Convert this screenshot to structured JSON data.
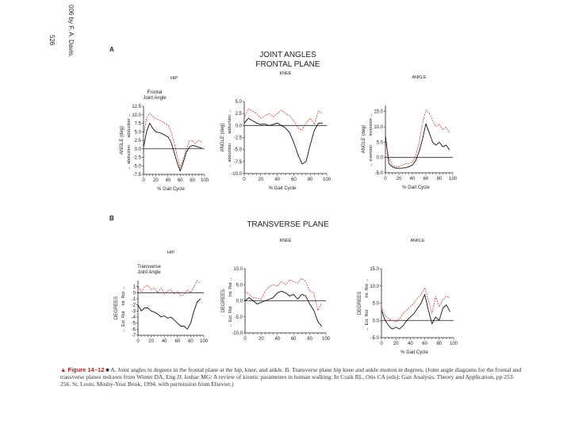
{
  "page_number": "526",
  "side_note": "006 by F. A. Davis.",
  "sections": [
    {
      "label": "A",
      "title_line1": "JOINT ANGLES",
      "title_line2": "FRONTAL PLANE"
    },
    {
      "label": "B",
      "title_line1": "TRANSVERSE PLANE",
      "title_line2": ""
    }
  ],
  "caption": {
    "fig_label": "▲ Figure 14–12",
    "text": "■ A. Joint angles in degrees in the frontal plane at the hip, knee, and ankle. B. Transverse plane hip knee and ankle motion in degrees. (Joint angle diagrams for the frontal and transverse planes redrawn from Winter DA, Eng JJ, Isshac MG: A review of kinetic parameters in human walking. In Craik RL, Otis CA (eds): Gait Analysis: Theory and Application, pp 253-256. St. Louis, Mosby-Year Book, 1994, with permission from Elsevier.)"
  },
  "colors": {
    "series1": "#111111",
    "series2": "#c0392b"
  },
  "chart_data": [
    {
      "type": "line",
      "title": "HIP",
      "inset_label": "Frontal Joint Angle",
      "xlabel": "% Gait Cycle",
      "ylabel": "ANGLE (deg)",
      "dir_top": "adduction",
      "dir_bottom": "abduction",
      "xlim": [
        0,
        100
      ],
      "ylim": [
        -7.5,
        12.5
      ],
      "yticks": [
        "12.5",
        "10.0",
        "7.5",
        "5.0",
        "2.5",
        "0.0",
        "-2.5",
        "-5.0",
        "-7.5"
      ],
      "xticks": [
        "0",
        "20",
        "40",
        "60",
        "80",
        "100"
      ],
      "zero_line": 0,
      "series": [
        {
          "name": "series-1",
          "x": [
            0,
            5,
            10,
            15,
            20,
            25,
            30,
            35,
            40,
            45,
            50,
            55,
            60,
            65,
            70,
            75,
            80,
            85,
            90,
            95
          ],
          "y": [
            0.5,
            5,
            7.5,
            6,
            5,
            4.8,
            4.5,
            4,
            3.5,
            2,
            -1,
            -4,
            -6.5,
            -4,
            -1,
            0.5,
            1,
            0.8,
            0.5,
            0.2
          ]
        },
        {
          "name": "series-2",
          "x": [
            0,
            5,
            10,
            15,
            20,
            25,
            30,
            35,
            40,
            45,
            50,
            55,
            60,
            65,
            70,
            75,
            80,
            85,
            90,
            95
          ],
          "y": [
            4,
            9,
            10.5,
            9.5,
            8.8,
            8.5,
            8,
            7.5,
            7,
            5,
            2,
            -2,
            -5.5,
            -3,
            0,
            2.2,
            2.5,
            1.5,
            2.5,
            2
          ]
        }
      ]
    },
    {
      "type": "line",
      "title": "KNEE",
      "inset_label": "",
      "xlabel": "% Gait Cycle",
      "ylabel": "ANGLE (deg)",
      "dir_top": "adduction",
      "dir_bottom": "abduction",
      "xlim": [
        0,
        100
      ],
      "ylim": [
        -10,
        5
      ],
      "yticks": [
        "5.0",
        "2.5",
        "0.0",
        "-2.5",
        "-5.0",
        "-7.5",
        "-10.0"
      ],
      "xticks": [
        "0",
        "20",
        "40",
        "60",
        "80",
        "100"
      ],
      "zero_line": 0,
      "series": [
        {
          "name": "series-1",
          "x": [
            0,
            5,
            10,
            15,
            20,
            25,
            30,
            35,
            40,
            45,
            50,
            55,
            60,
            65,
            70,
            75,
            80,
            85,
            90,
            95
          ],
          "y": [
            0.5,
            1.5,
            1,
            0.5,
            0.2,
            0.3,
            0,
            0.2,
            0.5,
            0,
            -0.5,
            -1.5,
            -3.5,
            -6,
            -8,
            -7.5,
            -4,
            -1,
            0.5,
            0.5
          ]
        },
        {
          "name": "series-2",
          "x": [
            0,
            5,
            10,
            15,
            20,
            25,
            30,
            35,
            40,
            45,
            50,
            55,
            60,
            65,
            70,
            75,
            80,
            85,
            90,
            95
          ],
          "y": [
            1.5,
            3.5,
            3,
            2.5,
            1.5,
            2,
            2.5,
            1.8,
            2.5,
            3.2,
            2.5,
            2,
            1,
            -0.5,
            -1,
            0.5,
            1.5,
            0.2,
            3,
            2.5
          ]
        }
      ]
    },
    {
      "type": "line",
      "title": "ANKLE",
      "inset_label": "",
      "xlabel": "% Gait Cycle",
      "ylabel": "ANGLE (deg)",
      "dir_top": "inversion",
      "dir_bottom": "eversion",
      "xlim": [
        0,
        100
      ],
      "ylim": [
        -5,
        17
      ],
      "yticks": [
        "15.0",
        "10.0",
        "5.0",
        "0.0",
        "-5.0"
      ],
      "xticks": [
        "0",
        "20",
        "40",
        "60",
        "80",
        "100"
      ],
      "zero_line": 0,
      "series": [
        {
          "name": "series-1",
          "x": [
            0,
            5,
            10,
            15,
            20,
            25,
            30,
            35,
            40,
            45,
            50,
            55,
            60,
            65,
            70,
            75,
            80,
            85,
            90,
            95
          ],
          "y": [
            7,
            -2,
            -3,
            -3.5,
            -3.5,
            -3.5,
            -3.3,
            -3,
            -2.5,
            -1,
            2,
            6,
            11,
            8,
            5,
            4,
            5,
            3.5,
            4,
            2.5
          ]
        },
        {
          "name": "series-2",
          "x": [
            0,
            5,
            10,
            15,
            20,
            25,
            30,
            35,
            40,
            45,
            50,
            55,
            60,
            65,
            70,
            75,
            80,
            85,
            90,
            95
          ],
          "y": [
            5,
            0,
            -2.5,
            -3,
            -3,
            -2.5,
            -2,
            -2,
            -1.5,
            0.5,
            5,
            11,
            15.5,
            14.5,
            12,
            10,
            11,
            9,
            10,
            8
          ]
        }
      ]
    },
    {
      "type": "line",
      "title": "HIP",
      "inset_label": "Transverse Joint Angle",
      "xlabel": "",
      "ylabel": "DEGREES",
      "dir_top": "Int. Rot",
      "dir_bottom": "Ext. Rot",
      "xlim": [
        0,
        100
      ],
      "ylim": [
        -7,
        2
      ],
      "yticks": [
        "1",
        "0",
        "-1",
        "-2",
        "-3",
        "-4",
        "-5",
        "-6",
        "-7"
      ],
      "xticks": [
        "0",
        "20",
        "40",
        "60",
        "80",
        "100"
      ],
      "zero_line": 0,
      "series": [
        {
          "name": "series-1",
          "x": [
            0,
            5,
            10,
            15,
            20,
            25,
            30,
            35,
            40,
            45,
            50,
            55,
            60,
            65,
            70,
            75,
            80,
            85,
            90,
            95
          ],
          "y": [
            -2,
            -3,
            -2.5,
            -2.5,
            -3,
            -3.2,
            -3.5,
            -4,
            -3.8,
            -4.2,
            -4,
            -4.5,
            -5,
            -5.5,
            -5.5,
            -6,
            -5,
            -3,
            -1.5,
            -1
          ]
        },
        {
          "name": "series-2",
          "x": [
            0,
            5,
            10,
            15,
            20,
            25,
            30,
            35,
            40,
            45,
            50,
            55,
            60,
            65,
            70,
            75,
            80,
            85,
            90,
            95
          ],
          "y": [
            1,
            0.2,
            1,
            1.2,
            0.5,
            0.8,
            0,
            0.8,
            -0.3,
            0.3,
            0.5,
            -0.2,
            0.2,
            -0.5,
            -0.3,
            0.5,
            0,
            1,
            2,
            1.5
          ]
        }
      ]
    },
    {
      "type": "line",
      "title": "KNEE",
      "inset_label": "",
      "xlabel": "",
      "ylabel": "DEGREES",
      "dir_top": "Int. Rot",
      "dir_bottom": "Ext. Rot",
      "xlim": [
        0,
        100
      ],
      "ylim": [
        -10,
        10
      ],
      "yticks": [
        "10.0",
        "5.0",
        "0.0",
        "-5.0",
        "-10.0"
      ],
      "xticks": [
        "0",
        "20",
        "40",
        "60",
        "80",
        "100"
      ],
      "zero_line": 0,
      "series": [
        {
          "name": "series-1",
          "x": [
            0,
            5,
            10,
            15,
            20,
            25,
            30,
            35,
            40,
            45,
            50,
            55,
            60,
            65,
            70,
            75,
            80,
            85,
            90,
            95
          ],
          "y": [
            0,
            1,
            0,
            -1,
            -0.5,
            0,
            0.5,
            1,
            2.5,
            3,
            2.5,
            1.5,
            2,
            0.5,
            2,
            1.5,
            -1,
            -3,
            -6.5,
            -8
          ]
        },
        {
          "name": "series-2",
          "x": [
            0,
            5,
            10,
            15,
            20,
            25,
            30,
            35,
            40,
            45,
            50,
            55,
            60,
            65,
            70,
            75,
            80,
            85,
            90,
            95
          ],
          "y": [
            3,
            2,
            1,
            0.8,
            0.5,
            3,
            4.5,
            5,
            4.5,
            6,
            5,
            6.5,
            6,
            5.5,
            7,
            6,
            3,
            2.5,
            -3,
            -0.5
          ]
        }
      ]
    },
    {
      "type": "line",
      "title": "ANKLE",
      "inset_label": "",
      "xlabel": "% Gait Cycle",
      "ylabel": "DEGREES",
      "dir_top": "Int. Rot",
      "dir_bottom": "Ext. Rot",
      "xlim": [
        0,
        100
      ],
      "ylim": [
        -5,
        15
      ],
      "yticks": [
        "15.0",
        "10.0",
        "5.0",
        "0.0",
        "-5.0"
      ],
      "xticks": [
        "0",
        "20",
        "40",
        "60",
        "80",
        "100"
      ],
      "zero_line": 0,
      "series": [
        {
          "name": "series-1",
          "x": [
            0,
            5,
            10,
            15,
            20,
            25,
            30,
            35,
            40,
            45,
            50,
            55,
            60,
            65,
            70,
            75,
            80,
            85,
            90,
            95
          ],
          "y": [
            3,
            0,
            -1.5,
            -2.5,
            -2,
            -2.5,
            -1.5,
            0,
            1,
            2,
            3.5,
            5,
            7.5,
            3,
            -1,
            1,
            0,
            3.5,
            4.5,
            2.5
          ]
        },
        {
          "name": "series-2",
          "x": [
            0,
            5,
            10,
            15,
            20,
            25,
            30,
            35,
            40,
            45,
            50,
            55,
            60,
            65,
            70,
            75,
            80,
            85,
            90,
            95
          ],
          "y": [
            4,
            1.5,
            0.5,
            0,
            -0.5,
            0.5,
            2,
            3,
            4,
            5,
            6.5,
            7.5,
            9.5,
            6,
            2,
            7,
            4,
            6,
            7,
            6.5
          ]
        }
      ]
    }
  ]
}
